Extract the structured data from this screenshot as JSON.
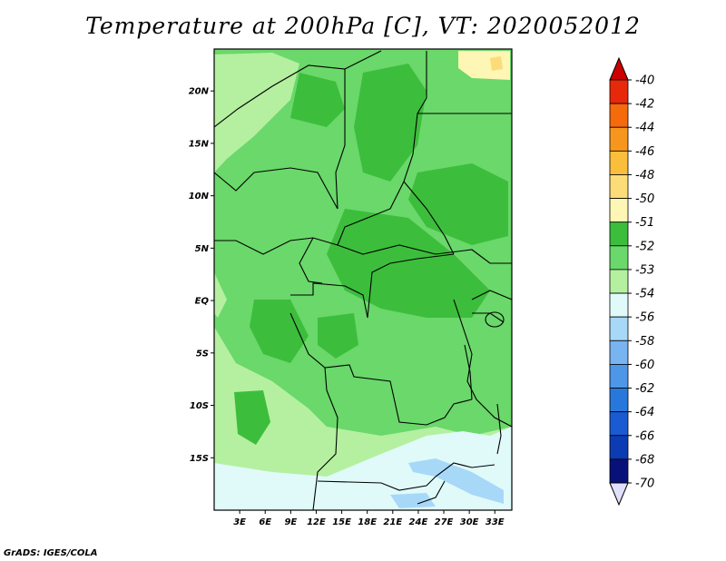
{
  "title": "Temperature at 200hPa [C], VT: 2020052012",
  "credit": "GrADS: IGES/COLA",
  "map": {
    "region": "Central Africa",
    "lat_range": [
      -20,
      24
    ],
    "lon_range": [
      0,
      35
    ],
    "lat_ticks": [
      {
        "value": 20,
        "label": "20N"
      },
      {
        "value": 15,
        "label": "15N"
      },
      {
        "value": 10,
        "label": "10N"
      },
      {
        "value": 5,
        "label": "5N"
      },
      {
        "value": 0,
        "label": "EQ"
      },
      {
        "value": -5,
        "label": "5S"
      },
      {
        "value": -10,
        "label": "10S"
      },
      {
        "value": -15,
        "label": "15S"
      }
    ],
    "lon_ticks": [
      {
        "value": 3,
        "label": "3E"
      },
      {
        "value": 6,
        "label": "6E"
      },
      {
        "value": 9,
        "label": "9E"
      },
      {
        "value": 12,
        "label": "12E"
      },
      {
        "value": 15,
        "label": "15E"
      },
      {
        "value": 18,
        "label": "18E"
      },
      {
        "value": 21,
        "label": "21E"
      },
      {
        "value": 24,
        "label": "24E"
      },
      {
        "value": 27,
        "label": "27E"
      },
      {
        "value": 30,
        "label": "30E"
      },
      {
        "value": 33,
        "label": "33E"
      }
    ]
  },
  "legend": {
    "levels": [
      {
        "label": "-40",
        "color": "#cc0000"
      },
      {
        "label": "-42",
        "color": "#e8280a"
      },
      {
        "label": "-44",
        "color": "#f56a0a"
      },
      {
        "label": "-46",
        "color": "#f7961e"
      },
      {
        "label": "-48",
        "color": "#f9be3c"
      },
      {
        "label": "-50",
        "color": "#fbdc78"
      },
      {
        "label": "-51",
        "color": "#fdf6b4"
      },
      {
        "label": "-52",
        "color": "#3cbe3c"
      },
      {
        "label": "-53",
        "color": "#6ad86a"
      },
      {
        "label": "-54",
        "color": "#b4f0a0"
      },
      {
        "label": "-56",
        "color": "#e0fafa"
      },
      {
        "label": "-58",
        "color": "#a8d8f8"
      },
      {
        "label": "-60",
        "color": "#78b4f0"
      },
      {
        "label": "-62",
        "color": "#4e96e8"
      },
      {
        "label": "-64",
        "color": "#2878dc"
      },
      {
        "label": "-66",
        "color": "#1a5ad2"
      },
      {
        "label": "-68",
        "color": "#0c3cb4"
      },
      {
        "label": "-70",
        "color": "#08107a"
      }
    ],
    "top_arrow_color": "#cc0000",
    "bottom_arrow_color": "#e0e0fa"
  },
  "field_colors": {
    "base": "#6ad86a",
    "warm": "#3cbe3c",
    "cool": "#b4f0a0",
    "cold": "#e0fafa",
    "colder": "#a8d8f8",
    "hot": "#fdf6b4",
    "hotter": "#fbdc78"
  }
}
